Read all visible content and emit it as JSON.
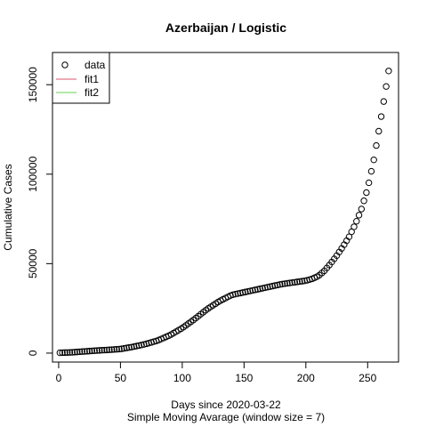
{
  "chart_data": {
    "type": "scatter",
    "title": "Azerbaijan / Logistic",
    "xlabel": "Days since 2020-03-22",
    "xlabel2": "Simple Moving Avarage (window size = 7)",
    "ylabel": "Cumulative Cases",
    "xlim": [
      -5,
      275
    ],
    "ylim": [
      -5000,
      168000
    ],
    "xticks": [
      0,
      50,
      100,
      150,
      200,
      250
    ],
    "yticks": [
      0,
      50000,
      100000,
      150000
    ],
    "xtick_labels": [
      "0",
      "50",
      "100",
      "150",
      "200",
      "250"
    ],
    "ytick_labels": [
      "0",
      "50000",
      "100000",
      "150000"
    ],
    "legend_position": "top-left",
    "legend": [
      {
        "label": "data",
        "kind": "point",
        "color": "#000000"
      },
      {
        "label": "fit1",
        "kind": "line",
        "color": "#DF536B"
      },
      {
        "label": "fit2",
        "kind": "line",
        "color": "#61D04F"
      }
    ],
    "series": [
      {
        "name": "data",
        "marker": "open-circle",
        "color": "#000000",
        "x_start": 1,
        "x_end": 268,
        "x_step": 2,
        "knots": [
          [
            1,
            200
          ],
          [
            10,
            400
          ],
          [
            20,
            900
          ],
          [
            30,
            1400
          ],
          [
            40,
            1800
          ],
          [
            50,
            2300
          ],
          [
            60,
            3500
          ],
          [
            70,
            5000
          ],
          [
            80,
            7000
          ],
          [
            90,
            10000
          ],
          [
            100,
            14000
          ],
          [
            110,
            19000
          ],
          [
            120,
            24500
          ],
          [
            130,
            29000
          ],
          [
            140,
            32500
          ],
          [
            150,
            34000
          ],
          [
            160,
            35500
          ],
          [
            170,
            37000
          ],
          [
            180,
            38500
          ],
          [
            190,
            39500
          ],
          [
            200,
            40500
          ],
          [
            205,
            41500
          ],
          [
            210,
            43000
          ],
          [
            215,
            46000
          ],
          [
            220,
            50000
          ],
          [
            225,
            54500
          ],
          [
            230,
            59500
          ],
          [
            235,
            65000
          ],
          [
            240,
            72000
          ],
          [
            245,
            80500
          ],
          [
            250,
            92000
          ],
          [
            255,
            108000
          ],
          [
            260,
            128000
          ],
          [
            265,
            149000
          ],
          [
            268,
            162000
          ]
        ]
      }
    ]
  }
}
